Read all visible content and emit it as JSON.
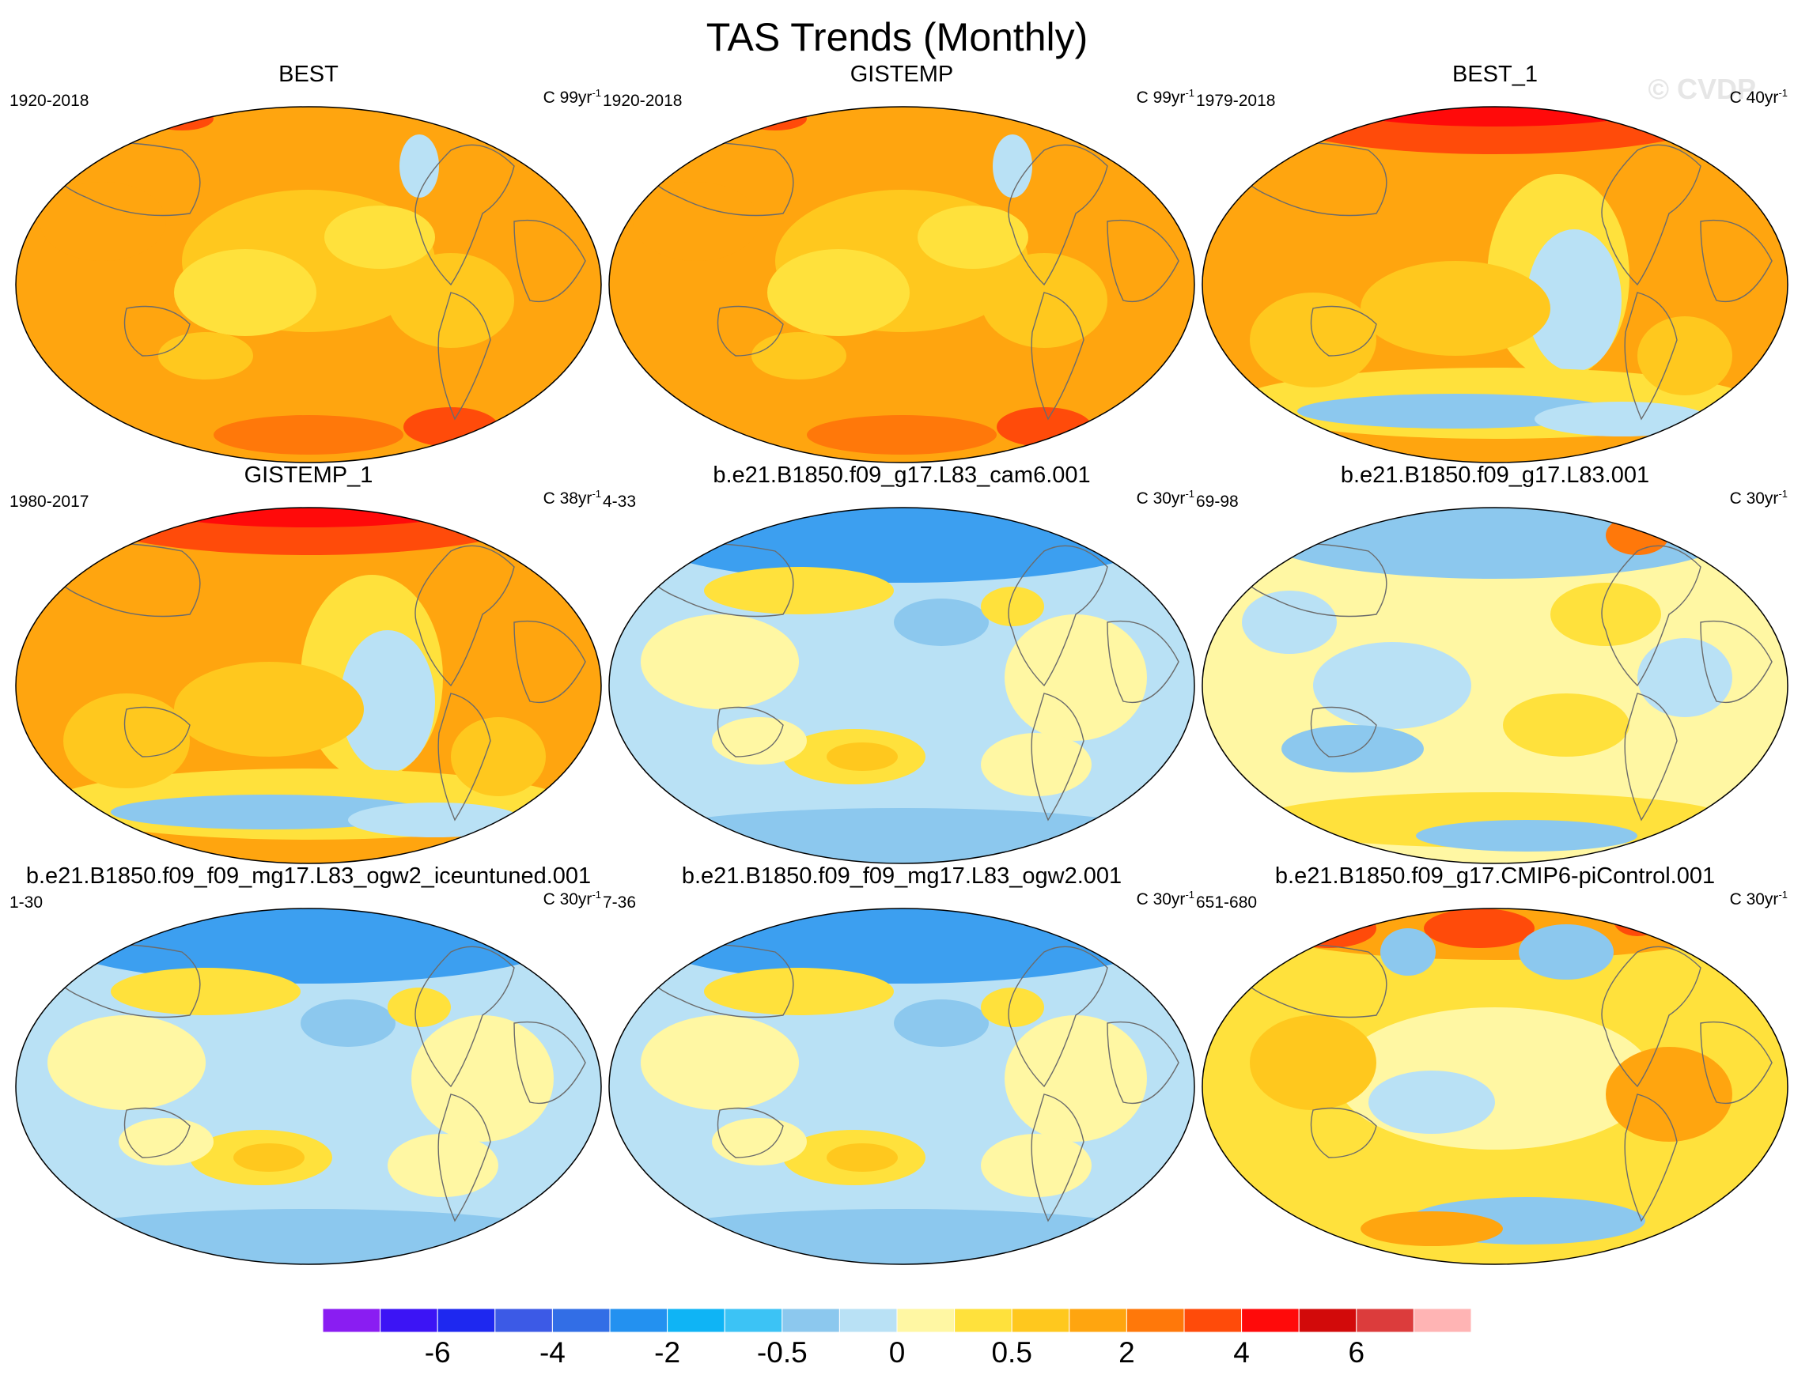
{
  "figure": {
    "title": "TAS Trends (Monthly)",
    "watermark": "© CVDP"
  },
  "panels": [
    {
      "title": "BEST",
      "period": "1920-2018",
      "units": "C 99yr",
      "units_exp": "-1",
      "pattern": "warm-uniform"
    },
    {
      "title": "GISTEMP",
      "period": "1920-2018",
      "units": "C 99yr",
      "units_exp": "-1",
      "pattern": "warm-uniform"
    },
    {
      "title": "BEST_1",
      "period": "1979-2018",
      "units": "C 40yr",
      "units_exp": "-1",
      "pattern": "warm-arctic-amplified"
    },
    {
      "title": "GISTEMP_1",
      "period": "1980-2017",
      "units": "C 38yr",
      "units_exp": "-1",
      "pattern": "warm-arctic-amplified"
    },
    {
      "title": "b.e21.B1850.f09_g17.L83_cam6.001",
      "period": "4-33",
      "units": "C 30yr",
      "units_exp": "-1",
      "pattern": "mixed-cool"
    },
    {
      "title": "b.e21.B1850.f09_g17.L83.001",
      "period": "69-98",
      "units": "C 30yr",
      "units_exp": "-1",
      "pattern": "mixed"
    },
    {
      "title": "b.e21.B1850.f09_f09_mg17.L83_ogw2_iceuntuned.001",
      "period": "1-30",
      "units": "C 30yr",
      "units_exp": "-1",
      "pattern": "mixed-cool"
    },
    {
      "title": "b.e21.B1850.f09_f09_mg17.L83_ogw2.001",
      "period": "7-36",
      "units": "C 30yr",
      "units_exp": "-1",
      "pattern": "mixed-cool"
    },
    {
      "title": "b.e21.B1850.f09_g17.CMIP6-piControl.001",
      "period": "651-680",
      "units": "C 30yr",
      "units_exp": "-1",
      "pattern": "mixed-warm"
    }
  ],
  "colorbar": {
    "colors": [
      "#8a1df2",
      "#3c14f5",
      "#1e28f0",
      "#3c5ae6",
      "#326ee6",
      "#2391f0",
      "#0fb4f5",
      "#3cc3f5",
      "#8cc8ee",
      "#b9e1f5",
      "#fff7a3",
      "#ffe13c",
      "#ffc81e",
      "#ffa50f",
      "#ff780a",
      "#ff4b0a",
      "#ff0a0a",
      "#d20a0a",
      "#dc3c3c",
      "#ffb4b4"
    ],
    "labels": [
      {
        "text": "-6",
        "boundary": 2
      },
      {
        "text": "-4",
        "boundary": 4
      },
      {
        "text": "-2",
        "boundary": 6
      },
      {
        "text": "-0.5",
        "boundary": 8
      },
      {
        "text": "0",
        "boundary": 10
      },
      {
        "text": "0.5",
        "boundary": 12
      },
      {
        "text": "2",
        "boundary": 14
      },
      {
        "text": "4",
        "boundary": 16
      },
      {
        "text": "6",
        "boundary": 18
      }
    ]
  }
}
